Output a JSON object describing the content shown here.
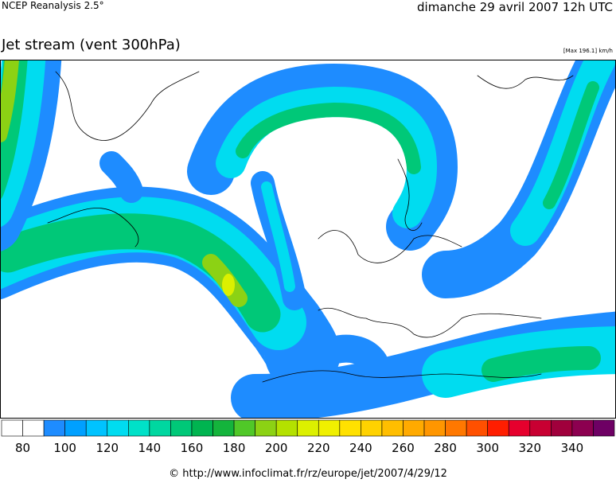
{
  "header": {
    "source": "NCEP Reanalysis 2.5°",
    "date": "dimanche 29 avril 2007 12h UTC",
    "title": "Jet stream (vent 300hPa)",
    "max": "[Max 196.1] km/h"
  },
  "colorbar": {
    "colors": [
      "#ffffff",
      "#ffffff",
      "#1e8cff",
      "#00a0ff",
      "#00c3ff",
      "#00dcf0",
      "#00e1c8",
      "#00d7a0",
      "#00c878",
      "#00b450",
      "#14b43c",
      "#50c828",
      "#8cd214",
      "#b4e100",
      "#dcf000",
      "#f0f000",
      "#ffe100",
      "#ffd200",
      "#ffbe00",
      "#ffaa00",
      "#ff9600",
      "#ff7800",
      "#ff5000",
      "#ff1e00",
      "#e6002d",
      "#c80032",
      "#a0003c",
      "#8c0050",
      "#6e0064"
    ],
    "labels": [
      80,
      100,
      120,
      140,
      160,
      180,
      200,
      220,
      240,
      260,
      280,
      300,
      320,
      340
    ]
  },
  "footer": "© http://www.infoclimat.fr/rz/europe/jet/2007/4/29/12"
}
